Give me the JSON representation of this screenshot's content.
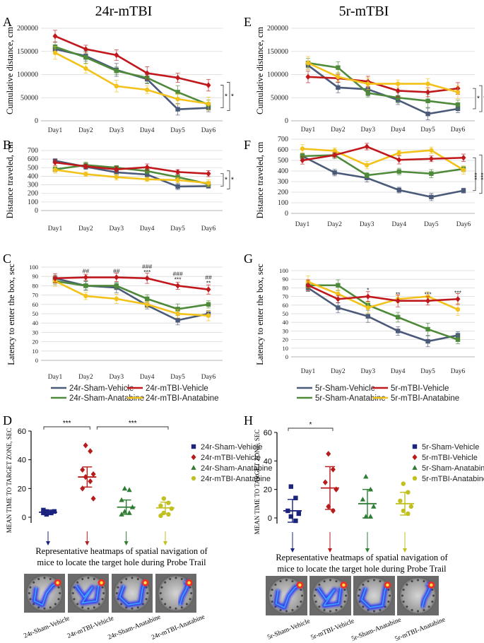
{
  "colors": {
    "sham_vehicle": "#4a5a78",
    "mtbi_vehicle": "#c0181c",
    "sham_anatabine": "#4e8a3a",
    "mtbi_anatabine": "#f2c21a",
    "bar_sham_vehicle": "#1a237e",
    "bar_mtbi_vehicle": "#b71c1c",
    "bar_sham_anatabine": "#2e7d32",
    "bar_mtbi_anatabine": "#c0c020"
  },
  "headings": {
    "left": "24r-mTBI",
    "right": "5r-mTBI"
  },
  "panel_letters": {
    "A": "A",
    "B": "B",
    "C": "C",
    "D": "D",
    "E": "E",
    "F": "F",
    "G": "G",
    "H": "H"
  },
  "legend_lines": {
    "left": [
      "24r-Sham-Vehicle",
      "24r-mTBI-Vehicle",
      "24r-Sham-Anatabine",
      "24r-mTBI-Anatabine"
    ],
    "right": [
      "5r-Sham-Vehicle",
      "5r-mTBI-Vehicle",
      "5r-Sham-Anatabine",
      "5r-mTBI-Anatabine"
    ]
  },
  "caption": {
    "line1": "Representative heatmaps of spatial navigation of",
    "line2": "mice to locate the target hole during Probe Trail"
  },
  "heatmap_labels": {
    "left": [
      "24r-Sham-Vehicle",
      "24r-mTBI-Vehicle",
      "24r-Sham-Anatabine",
      "24r-mTBI-Anatabine"
    ],
    "right": [
      "5r-Sham-Vehicle",
      "5r-mTBI-Vehicle",
      "5r-Sham-Anatabine",
      "5r-mTBI-Anatabine"
    ]
  },
  "chart_data": [
    {
      "id": "A",
      "type": "line",
      "title": "",
      "xlabel": "",
      "ylabel": "Cumulative distance, cm",
      "categories": [
        "Day1",
        "Day2",
        "Day3",
        "Day4",
        "Day5",
        "Day6"
      ],
      "ylim": [
        0,
        200000
      ],
      "yticks": [
        "0",
        "50000",
        "100000",
        "150000",
        "200000"
      ],
      "series": [
        {
          "name": "24r-Sham-Vehicle",
          "values": [
            155000,
            140000,
            110000,
            90000,
            25000,
            28000
          ]
        },
        {
          "name": "24r-mTBI-Vehicle",
          "values": [
            183000,
            155000,
            142000,
            103000,
            93000,
            77000
          ]
        },
        {
          "name": "24r-Sham-Anatabine",
          "values": [
            160000,
            137000,
            108000,
            93000,
            62000,
            35000
          ]
        },
        {
          "name": "24r-mTBI-Anatabine",
          "values": [
            147000,
            113000,
            75000,
            67000,
            47000,
            37000
          ]
        }
      ],
      "bracket_labels": [
        "*",
        "*"
      ]
    },
    {
      "id": "B",
      "type": "line",
      "title": "",
      "xlabel": "",
      "ylabel": "Distance  traveled, cm",
      "categories": [
        "Day1",
        "Day2",
        "Day3",
        "Day4",
        "Day5",
        "Day6"
      ],
      "ylim": [
        0,
        700
      ],
      "yticks": [
        "0",
        "100",
        "200",
        "300",
        "400",
        "500",
        "600",
        "700"
      ],
      "series": [
        {
          "name": "24r-Sham-Vehicle",
          "values": [
            580,
            510,
            445,
            420,
            280,
            285
          ]
        },
        {
          "name": "24r-mTBI-Vehicle",
          "values": [
            560,
            515,
            480,
            505,
            450,
            430
          ]
        },
        {
          "name": "24r-Sham-Anatabine",
          "values": [
            480,
            530,
            500,
            460,
            390,
            310
          ]
        },
        {
          "name": "24r-mTBI-Anatabine",
          "values": [
            475,
            425,
            390,
            365,
            355,
            320
          ]
        }
      ],
      "bracket_labels": [
        "*",
        "*"
      ]
    },
    {
      "id": "C",
      "type": "line",
      "title": "",
      "xlabel": "",
      "ylabel": "Latency to enter the box, sec",
      "categories": [
        "Day1",
        "Day2",
        "Day3",
        "Day4",
        "Day5",
        "Day6"
      ],
      "ylim": [
        0,
        100
      ],
      "yticks": [
        "0",
        "10",
        "20",
        "30",
        "40",
        "50",
        "60",
        "70",
        "80",
        "90",
        "100"
      ],
      "series": [
        {
          "name": "24r-Sham-Vehicle",
          "values": [
            88,
            80,
            78,
            59,
            43,
            50
          ]
        },
        {
          "name": "24r-mTBI-Vehicle",
          "values": [
            88,
            89,
            89,
            88,
            80,
            76
          ]
        },
        {
          "name": "24r-Sham-Anatabine",
          "values": [
            85,
            80,
            80,
            66,
            55,
            60
          ]
        },
        {
          "name": "24r-mTBI-Anatabine",
          "values": [
            85,
            69,
            66,
            60,
            50,
            48
          ]
        }
      ],
      "annotations": [
        {
          "day": "Day2",
          "lines": [
            "##"
          ]
        },
        {
          "day": "Day3",
          "lines": [
            "##"
          ]
        },
        {
          "day": "Day4",
          "lines": [
            "###",
            "***"
          ]
        },
        {
          "day": "Day5",
          "lines": [
            "###",
            "***"
          ]
        },
        {
          "day": "Day6",
          "lines": [
            "##",
            "**"
          ]
        }
      ]
    },
    {
      "id": "E",
      "type": "line",
      "title": "",
      "xlabel": "",
      "ylabel": "Cumulative distance, cm",
      "categories": [
        "Day1",
        "Day2",
        "Day3",
        "Day4",
        "Day5",
        "Day6"
      ],
      "ylim": [
        0,
        200000
      ],
      "yticks": [
        "0",
        "50000",
        "100000",
        "150000",
        "200000"
      ],
      "series": [
        {
          "name": "5r-Sham-Vehicle",
          "values": [
            120000,
            72000,
            68000,
            45000,
            15000,
            26000
          ]
        },
        {
          "name": "5r-mTBI-Vehicle",
          "values": [
            95000,
            92000,
            85000,
            65000,
            62000,
            70000
          ]
        },
        {
          "name": "5r-Sham-Anatabine",
          "values": [
            125000,
            115000,
            60000,
            50000,
            43000,
            35000
          ]
        },
        {
          "name": "5r-mTBI-Anatabine",
          "values": [
            125000,
            95000,
            80000,
            80000,
            80000,
            62000
          ]
        }
      ],
      "bracket_labels": [
        "*",
        "*"
      ]
    },
    {
      "id": "F",
      "type": "line",
      "title": "",
      "xlabel": "",
      "ylabel": "Distance traveled, cm",
      "categories": [
        "Day1",
        "Day2",
        "Day3",
        "Day4",
        "Day5",
        "Day6"
      ],
      "ylim": [
        0,
        700
      ],
      "yticks": [
        "0",
        "100",
        "200",
        "300",
        "400",
        "500",
        "600",
        "700"
      ],
      "series": [
        {
          "name": "5r-Sham-Vehicle",
          "values": [
            540,
            385,
            335,
            220,
            155,
            215
          ]
        },
        {
          "name": "5r-mTBI-Vehicle",
          "values": [
            500,
            550,
            630,
            505,
            515,
            525
          ]
        },
        {
          "name": "5r-Sham-Anatabine",
          "values": [
            540,
            550,
            360,
            395,
            375,
            420
          ]
        },
        {
          "name": "5r-mTBI-Anatabine",
          "values": [
            610,
            590,
            455,
            570,
            595,
            410
          ]
        }
      ],
      "bracket_labels": [
        "***",
        "***"
      ]
    },
    {
      "id": "G",
      "type": "line",
      "title": "",
      "xlabel": "",
      "ylabel": "Latency to enter the box, sec",
      "categories": [
        "Day1",
        "Day2",
        "Day3",
        "Day4",
        "Day5",
        "Day6"
      ],
      "ylim": [
        0,
        100
      ],
      "yticks": [
        "0",
        "10",
        "20",
        "30",
        "40",
        "50",
        "60",
        "70",
        "80",
        "90",
        "100"
      ],
      "series": [
        {
          "name": "5r-Sham-Vehicle",
          "values": [
            80,
            57,
            47,
            30,
            18,
            25
          ]
        },
        {
          "name": "5r-mTBI-Vehicle",
          "values": [
            83,
            67,
            70,
            65,
            65,
            67
          ]
        },
        {
          "name": "5r-Sham-Anatabine",
          "values": [
            83,
            83,
            60,
            46,
            32,
            20
          ]
        },
        {
          "name": "5r-mTBI-Anatabine",
          "values": [
            87,
            73,
            57,
            67,
            70,
            55
          ]
        }
      ],
      "annotations": [
        {
          "day": "Day3",
          "lines": [
            "*"
          ]
        },
        {
          "day": "Day4",
          "lines": [
            "**"
          ]
        },
        {
          "day": "Day5",
          "lines": [
            "***"
          ]
        },
        {
          "day": "Day6",
          "lines": [
            "***"
          ]
        }
      ]
    },
    {
      "id": "D",
      "type": "scatter",
      "title": "",
      "xlabel": "",
      "ylabel": "MEAN TIME TO TARGET ZONE, SEC",
      "ylim": [
        0,
        60
      ],
      "yticks": [
        "0",
        "20",
        "40",
        "60"
      ],
      "groups": [
        {
          "name": "24r-Sham-Vehicle",
          "marker": "square",
          "mean": 3.5,
          "sd": 1.5,
          "points": [
            2,
            3,
            3,
            4,
            4,
            3,
            5,
            4
          ]
        },
        {
          "name": "24r-mTBI-Vehicle",
          "marker": "diamond",
          "mean": 28,
          "sd": 7,
          "points": [
            50,
            46,
            33,
            30,
            28,
            25,
            20,
            13
          ]
        },
        {
          "name": "24r-Sham-Anatabine",
          "marker": "triangle",
          "mean": 7,
          "sd": 5,
          "points": [
            20,
            19,
            12,
            7,
            4,
            3,
            2
          ]
        },
        {
          "name": "24r-mTBI-Anatabine",
          "marker": "circle",
          "mean": 6.5,
          "sd": 4,
          "points": [
            13,
            10,
            8,
            6,
            3,
            2,
            1
          ]
        }
      ],
      "significance": [
        {
          "from": 0,
          "to": 1,
          "label": "***"
        },
        {
          "from": 1,
          "to": 3,
          "label": "***"
        }
      ]
    },
    {
      "id": "H",
      "type": "scatter",
      "title": "",
      "xlabel": "",
      "ylabel": "MEAN TIME TO TARGET ZONE, SEC",
      "ylim": [
        0,
        60
      ],
      "yticks": [
        "0",
        "20",
        "40",
        "60"
      ],
      "groups": [
        {
          "name": "5r-Sham-Vehicle",
          "marker": "square",
          "mean": 5,
          "sd": 8,
          "points": [
            22,
            14,
            5,
            3,
            1,
            -2
          ]
        },
        {
          "name": "5r-mTBI-Vehicle",
          "marker": "diamond",
          "mean": 21,
          "sd": 15,
          "points": [
            45,
            34,
            25,
            20,
            8,
            5
          ]
        },
        {
          "name": "5r-Sham-Anatabine",
          "marker": "triangle",
          "mean": 10,
          "sd": 10,
          "points": [
            29,
            20,
            13,
            8,
            1,
            1
          ]
        },
        {
          "name": "5r-mTBI-Anatabine",
          "marker": "circle",
          "mean": 10,
          "sd": 8,
          "points": [
            24,
            18,
            12,
            8,
            5,
            3
          ]
        }
      ],
      "significance": [
        {
          "from": 0,
          "to": 1,
          "label": "*"
        }
      ]
    }
  ]
}
